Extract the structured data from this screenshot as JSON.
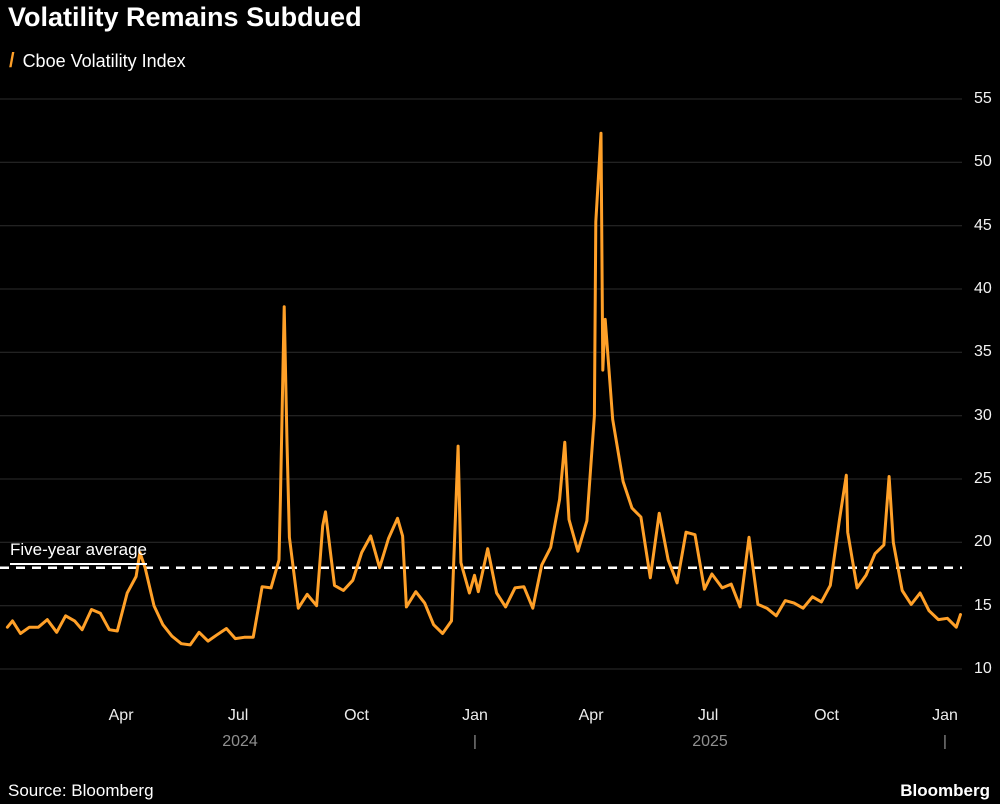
{
  "header": {
    "title": "Volatility Remains Subdued"
  },
  "legend": {
    "swatch_glyph": "/",
    "series_label": "Cboe Volatility Index"
  },
  "annotation": {
    "label": "Five-year average"
  },
  "footer": {
    "source": "Source: Bloomberg",
    "brand": "Bloomberg"
  },
  "colors": {
    "background": "#000000",
    "line": "#ffa028",
    "grid": "#2d2d2d",
    "text": "#ffffff",
    "muted": "#8f8f8f",
    "average_line": "#ffffff"
  },
  "chart_data": {
    "type": "line",
    "title": "Volatility Remains Subdued",
    "series_name": "Cboe Volatility Index",
    "x_unit": "decimal_year",
    "x_range": [
      2024.0,
      2026.04
    ],
    "ylim": [
      10,
      55
    ],
    "grid": "horizontal-only",
    "legend_position": "top-left",
    "y_axis_side": "right",
    "yticks": [
      10,
      15,
      20,
      25,
      30,
      35,
      40,
      45,
      50,
      55
    ],
    "xticks": [
      {
        "t": 2024.247,
        "label": "Apr"
      },
      {
        "t": 2024.496,
        "label": "Jul"
      },
      {
        "t": 2024.748,
        "label": "Oct"
      },
      {
        "t": 2025.0,
        "label": "Jan"
      },
      {
        "t": 2025.247,
        "label": "Apr"
      },
      {
        "t": 2025.496,
        "label": "Jul"
      },
      {
        "t": 2025.748,
        "label": "Oct"
      },
      {
        "t": 2026.0,
        "label": "Jan"
      }
    ],
    "year_labels": [
      {
        "t": 2024.5,
        "label": "2024"
      },
      {
        "t": 2025.5,
        "label": "2025"
      }
    ],
    "year_ticks": [
      2025.0,
      2026.0
    ],
    "five_year_average": 18,
    "points": [
      [
        2024.005,
        13.3
      ],
      [
        2024.016,
        13.8
      ],
      [
        2024.033,
        12.8
      ],
      [
        2024.052,
        13.3
      ],
      [
        2024.071,
        13.3
      ],
      [
        2024.09,
        13.9
      ],
      [
        2024.11,
        12.9
      ],
      [
        2024.129,
        14.2
      ],
      [
        2024.148,
        13.8
      ],
      [
        2024.164,
        13.1
      ],
      [
        2024.184,
        14.7
      ],
      [
        2024.203,
        14.4
      ],
      [
        2024.222,
        13.1
      ],
      [
        2024.239,
        13.0
      ],
      [
        2024.26,
        16.0
      ],
      [
        2024.279,
        17.3
      ],
      [
        2024.287,
        19.2
      ],
      [
        2024.298,
        18.0
      ],
      [
        2024.317,
        15.0
      ],
      [
        2024.336,
        13.5
      ],
      [
        2024.355,
        12.6
      ],
      [
        2024.375,
        12.0
      ],
      [
        2024.394,
        11.9
      ],
      [
        2024.413,
        12.9
      ],
      [
        2024.432,
        12.2
      ],
      [
        2024.451,
        12.7
      ],
      [
        2024.471,
        13.2
      ],
      [
        2024.49,
        12.4
      ],
      [
        2024.509,
        12.5
      ],
      [
        2024.528,
        12.5
      ],
      [
        2024.547,
        16.5
      ],
      [
        2024.566,
        16.4
      ],
      [
        2024.583,
        18.6
      ],
      [
        2024.586,
        23.4
      ],
      [
        2024.594,
        38.6
      ],
      [
        2024.6,
        27.9
      ],
      [
        2024.605,
        20.4
      ],
      [
        2024.624,
        14.8
      ],
      [
        2024.643,
        15.9
      ],
      [
        2024.663,
        15.0
      ],
      [
        2024.676,
        21.3
      ],
      [
        2024.682,
        22.4
      ],
      [
        2024.701,
        16.6
      ],
      [
        2024.72,
        16.2
      ],
      [
        2024.74,
        17.0
      ],
      [
        2024.759,
        19.2
      ],
      [
        2024.778,
        20.5
      ],
      [
        2024.797,
        18.0
      ],
      [
        2024.816,
        20.3
      ],
      [
        2024.835,
        21.9
      ],
      [
        2024.846,
        20.5
      ],
      [
        2024.854,
        14.9
      ],
      [
        2024.874,
        16.1
      ],
      [
        2024.893,
        15.2
      ],
      [
        2024.912,
        13.5
      ],
      [
        2024.931,
        12.8
      ],
      [
        2024.95,
        13.8
      ],
      [
        2024.964,
        27.6
      ],
      [
        2024.97,
        18.4
      ],
      [
        2024.988,
        16.0
      ],
      [
        2024.999,
        17.4
      ],
      [
        2025.007,
        16.1
      ],
      [
        2025.027,
        19.5
      ],
      [
        2025.046,
        16.0
      ],
      [
        2025.065,
        14.9
      ],
      [
        2025.085,
        16.4
      ],
      [
        2025.104,
        16.5
      ],
      [
        2025.123,
        14.8
      ],
      [
        2025.142,
        18.2
      ],
      [
        2025.161,
        19.6
      ],
      [
        2025.18,
        23.4
      ],
      [
        2025.191,
        27.9
      ],
      [
        2025.2,
        21.8
      ],
      [
        2025.219,
        19.3
      ],
      [
        2025.238,
        21.7
      ],
      [
        2025.254,
        30.0
      ],
      [
        2025.257,
        45.3
      ],
      [
        2025.268,
        52.3
      ],
      [
        2025.272,
        33.6
      ],
      [
        2025.277,
        37.6
      ],
      [
        2025.293,
        29.7
      ],
      [
        2025.315,
        24.8
      ],
      [
        2025.334,
        22.7
      ],
      [
        2025.353,
        22.0
      ],
      [
        2025.373,
        17.2
      ],
      [
        2025.392,
        22.3
      ],
      [
        2025.411,
        18.6
      ],
      [
        2025.43,
        16.8
      ],
      [
        2025.449,
        20.8
      ],
      [
        2025.468,
        20.6
      ],
      [
        2025.488,
        16.3
      ],
      [
        2025.504,
        17.5
      ],
      [
        2025.526,
        16.4
      ],
      [
        2025.545,
        16.7
      ],
      [
        2025.564,
        14.9
      ],
      [
        2025.583,
        20.4
      ],
      [
        2025.602,
        15.1
      ],
      [
        2025.621,
        14.8
      ],
      [
        2025.641,
        14.2
      ],
      [
        2025.66,
        15.4
      ],
      [
        2025.679,
        15.2
      ],
      [
        2025.698,
        14.8
      ],
      [
        2025.718,
        15.7
      ],
      [
        2025.737,
        15.3
      ],
      [
        2025.756,
        16.6
      ],
      [
        2025.775,
        21.7
      ],
      [
        2025.79,
        25.3
      ],
      [
        2025.793,
        20.8
      ],
      [
        2025.813,
        16.4
      ],
      [
        2025.832,
        17.4
      ],
      [
        2025.851,
        19.1
      ],
      [
        2025.87,
        19.8
      ],
      [
        2025.881,
        25.2
      ],
      [
        2025.89,
        20.0
      ],
      [
        2025.909,
        16.2
      ],
      [
        2025.928,
        15.1
      ],
      [
        2025.947,
        16.0
      ],
      [
        2025.966,
        14.6
      ],
      [
        2025.986,
        13.9
      ],
      [
        2026.005,
        14.0
      ],
      [
        2026.024,
        13.3
      ],
      [
        2026.033,
        14.3
      ]
    ]
  }
}
